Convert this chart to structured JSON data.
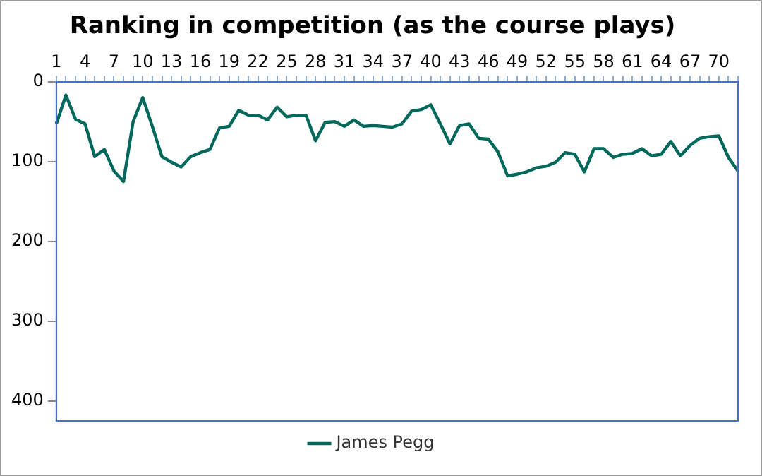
{
  "chart_data": {
    "type": "line",
    "title": "Ranking in competition (as the course plays)",
    "categories": [
      "1",
      null,
      null,
      "4",
      null,
      null,
      "7",
      null,
      null,
      "10",
      null,
      null,
      "13",
      null,
      null,
      "16",
      null,
      null,
      "19",
      null,
      null,
      "22",
      null,
      null,
      "25",
      null,
      null,
      "28",
      null,
      null,
      "31",
      null,
      null,
      "34",
      null,
      null,
      "37",
      null,
      null,
      "40",
      null,
      null,
      "43",
      null,
      null,
      "46",
      null,
      null,
      "49",
      null,
      null,
      "52",
      null,
      null,
      "55",
      null,
      null,
      "58",
      null,
      null,
      "61",
      null,
      null,
      "64",
      null,
      null,
      "67",
      null,
      null,
      "70",
      null,
      null
    ],
    "series": [
      {
        "name": "James Pegg",
        "color": "#00695c",
        "values": [
          53,
          17,
          47,
          53,
          94,
          85,
          112,
          125,
          50,
          20,
          56,
          94,
          101,
          107,
          94,
          89,
          85,
          58,
          56,
          36,
          42,
          42,
          48,
          32,
          44,
          42,
          42,
          74,
          51,
          50,
          56,
          48,
          56,
          55,
          56,
          57,
          53,
          37,
          35,
          29,
          53,
          78,
          55,
          53,
          71,
          72,
          88,
          118,
          116,
          113,
          108,
          106,
          101,
          89,
          91,
          113,
          84,
          84,
          95,
          91,
          90,
          84,
          93,
          91,
          75,
          93,
          80,
          71,
          69,
          68,
          95,
          112
        ]
      }
    ],
    "ylim": [
      425,
      0
    ],
    "yticks": [
      0,
      100,
      200,
      300,
      400
    ],
    "grid": false,
    "legend": "bottom",
    "marker": "none",
    "line_style": "solid"
  }
}
